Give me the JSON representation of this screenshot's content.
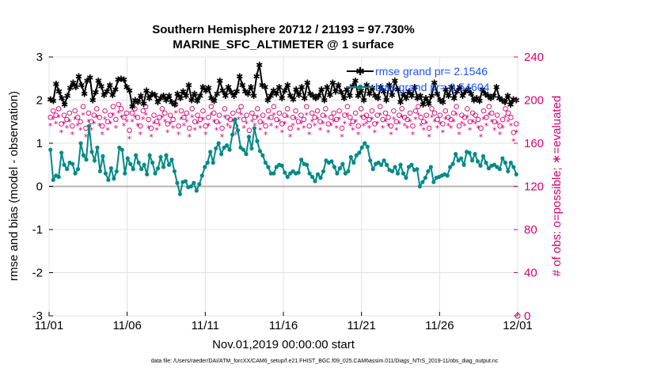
{
  "chart_data": {
    "type": "line",
    "title_line1": "Southern Hemisphere 20712 / 21193 = 97.730%",
    "title_line2": "MARINE_SFC_ALTIMETER @ 1 surface",
    "xlabel": "Nov.01,2019 00:00:00 start",
    "ylabel_left": "rmse and bias (model - observation)",
    "ylabel_right": "# of obs: o=possible; ∗=evaluated",
    "footnote": "data file: /Users/raeder/DAI/ATM_forcXX/CAM6_setup/f.e21.FHIST_BGC.f09_025.CAM6assim.011/Diags_NTrS_2019-11/obs_diag_output.nc",
    "xlim": [
      0,
      30
    ],
    "ylim_left": [
      -3,
      3
    ],
    "ylim_right": [
      0,
      240
    ],
    "x_tick_labels": [
      "11/01",
      "11/06",
      "11/11",
      "11/16",
      "11/21",
      "11/26",
      "12/01"
    ],
    "y_left_ticks": [
      "-3",
      "-2",
      "-1",
      "0",
      "1",
      "2",
      "3"
    ],
    "y_right_ticks": [
      "0",
      "40",
      "80",
      "120",
      "160",
      "200",
      "240"
    ],
    "legend": {
      "rmse_label": "rmse grand pr= 2.1546",
      "bias_label": "bias grand pr= 0.54604"
    },
    "series": [
      {
        "name": "rmse",
        "color": "#000000",
        "values": [
          2.02,
          1.98,
          2.38,
          2.2,
          2.05,
          1.9,
          2.1,
          2.28,
          2.4,
          2.3,
          2.55,
          2.35,
          2.15,
          2.45,
          2.52,
          2.0,
          2.18,
          2.45,
          2.32,
          2.12,
          2.2,
          2.35,
          2.12,
          2.25,
          2.48,
          2.5,
          2.48,
          2.3,
          2.22,
          1.85,
          2.0,
          1.95,
          2.1,
          1.92,
          2.22,
          2.05,
          2.15,
          2.12,
          1.95,
          2.05,
          2.1,
          2.0,
          2.1,
          1.95,
          1.9,
          2.15,
          2.05,
          2.2,
          2.1,
          2.35,
          2.0,
          2.15,
          1.98,
          2.1,
          2.3,
          2.22,
          2.28,
          2.05,
          1.98,
          2.15,
          2.45,
          2.22,
          2.1,
          2.3,
          2.18,
          2.1,
          2.2,
          2.55,
          2.35,
          2.2,
          2.15,
          2.3,
          2.1,
          2.55,
          2.82,
          2.35,
          2.3,
          2.0,
          2.1,
          2.22,
          2.15,
          2.3,
          2.05,
          2.22,
          2.35,
          2.1,
          2.02,
          2.25,
          2.12,
          2.3,
          2.05,
          2.4,
          2.15,
          2.1,
          2.05,
          2.1,
          2.25,
          2.0,
          2.3,
          2.12,
          2.4,
          2.2,
          2.35,
          2.18,
          2.05,
          2.25,
          2.1,
          2.32,
          2.45,
          2.1,
          2.22,
          2.0,
          2.35,
          2.15,
          2.28,
          2.1,
          2.05,
          2.3,
          2.2,
          2.0,
          2.35,
          2.12,
          2.45,
          2.25,
          1.95,
          2.15,
          2.05,
          2.2,
          2.1,
          2.3,
          2.05,
          2.1,
          1.9,
          2.05,
          1.92,
          2.1,
          2.4,
          2.15,
          2.0,
          1.95,
          2.25,
          2.1,
          2.3,
          2.05,
          2.2,
          2.3,
          2.1,
          2.2,
          2.25,
          2.15,
          2.0,
          2.05,
          1.98,
          2.25,
          2.15,
          2.1,
          2.05,
          2.1,
          2.3,
          2.05,
          2.0,
          1.95,
          2.1,
          1.9,
          2.02,
          2.0
        ]
      },
      {
        "name": "bias",
        "color": "#008a87",
        "values": [
          0.85,
          0.15,
          0.25,
          0.22,
          0.78,
          0.5,
          0.4,
          0.55,
          0.52,
          0.3,
          0.4,
          1.0,
          0.72,
          0.62,
          1.4,
          0.8,
          0.6,
          0.9,
          0.35,
          0.7,
          0.3,
          0.15,
          0.42,
          0.18,
          0.35,
          0.9,
          0.85,
          0.3,
          0.65,
          0.52,
          0.4,
          0.72,
          0.55,
          0.4,
          0.5,
          0.28,
          0.72,
          0.55,
          0.3,
          0.42,
          0.68,
          0.45,
          0.72,
          0.5,
          0.62,
          0.35,
          0.08,
          -0.18,
          0.1,
          0.12,
          -0.02,
          0.0,
          0.08,
          -0.1,
          0.05,
          0.25,
          0.45,
          0.55,
          0.8,
          0.55,
          0.88,
          1.0,
          0.75,
          0.9,
          0.95,
          0.85,
          1.2,
          1.55,
          1.3,
          0.9,
          0.85,
          0.75,
          1.15,
          0.88,
          1.35,
          1.05,
          0.82,
          0.72,
          0.55,
          0.45,
          0.3,
          0.3,
          0.45,
          0.5,
          0.48,
          0.32,
          0.22,
          0.3,
          0.35,
          0.3,
          0.32,
          0.62,
          0.52,
          0.5,
          0.3,
          0.22,
          0.12,
          0.28,
          0.2,
          0.35,
          0.6,
          0.55,
          0.58,
          0.45,
          0.3,
          0.42,
          0.52,
          0.3,
          0.35,
          0.68,
          0.55,
          0.72,
          0.78,
          0.9,
          1.0,
          0.92,
          0.6,
          0.4,
          0.52,
          0.55,
          0.5,
          0.6,
          0.5,
          0.38,
          0.35,
          0.45,
          0.3,
          0.5,
          0.3,
          0.2,
          0.45,
          0.5,
          0.38,
          0.4,
          0.0,
          0.1,
          0.2,
          0.35,
          0.45,
          0.1,
          0.2,
          0.22,
          0.25,
          0.28,
          0.25,
          0.45,
          0.52,
          0.75,
          0.6,
          0.65,
          0.5,
          0.8,
          0.78,
          0.6,
          0.75,
          0.58,
          0.48,
          0.7,
          0.55,
          0.42,
          0.48,
          0.5,
          0.45,
          0.4,
          0.65,
          0.55,
          0.35,
          0.55,
          0.45,
          0.28
        ]
      },
      {
        "name": "obs_possible",
        "color": "#d6006e",
        "marker": "circle",
        "values": [
          184,
          190,
          186,
          192,
          178,
          186,
          182,
          188,
          176,
          190,
          184,
          180,
          194,
          174,
          188,
          180,
          186,
          192,
          184,
          176,
          190,
          180,
          186,
          194,
          182,
          196,
          192,
          184,
          188,
          172,
          188,
          192,
          184,
          176,
          190,
          194,
          182,
          174,
          186,
          180,
          184,
          192,
          188,
          178,
          186,
          182,
          196,
          176,
          190,
          184,
          188,
          174,
          192,
          180,
          186,
          182,
          190,
          176,
          184,
          194,
          188,
          180,
          186,
          174,
          192,
          184,
          182,
          188,
          176,
          190,
          194,
          182,
          186,
          172,
          188,
          184,
          192,
          180,
          186,
          176,
          190,
          184,
          194,
          182,
          188,
          178,
          186,
          192,
          174,
          184,
          190,
          180,
          186,
          182,
          194,
          176,
          188,
          184,
          190,
          180,
          186,
          192,
          178,
          184,
          188,
          182,
          190,
          174,
          186,
          194,
          184,
          180,
          188,
          176,
          192,
          184,
          186,
          182,
          190,
          178,
          186,
          194,
          182,
          188,
          184,
          176,
          190,
          180,
          186,
          192,
          184,
          182,
          188,
          176,
          190,
          194,
          184,
          180,
          186,
          174,
          192,
          188,
          182,
          186,
          178,
          190,
          184,
          182,
          188,
          194,
          176,
          186,
          184,
          192,
          180,
          188,
          186,
          182,
          174,
          190,
          184,
          194,
          188,
          180,
          186,
          176,
          182,
          192,
          188,
          184,
          170,
          178
        ]
      },
      {
        "name": "obs_evaluated",
        "color": "#d6006e",
        "marker": "asterisk",
        "values": [
          176,
          182,
          178,
          184,
          170,
          178,
          174,
          180,
          168,
          182,
          176,
          172,
          186,
          166,
          180,
          172,
          178,
          184,
          176,
          168,
          182,
          172,
          178,
          186,
          174,
          188,
          184,
          176,
          180,
          164,
          180,
          184,
          176,
          168,
          182,
          186,
          174,
          166,
          178,
          172,
          176,
          184,
          180,
          170,
          178,
          174,
          188,
          168,
          182,
          176,
          180,
          166,
          184,
          172,
          178,
          174,
          182,
          168,
          176,
          186,
          180,
          172,
          178,
          166,
          184,
          176,
          174,
          180,
          168,
          182,
          186,
          174,
          178,
          164,
          180,
          176,
          184,
          172,
          178,
          168,
          182,
          176,
          186,
          174,
          180,
          170,
          178,
          184,
          166,
          176,
          182,
          172,
          178,
          174,
          186,
          168,
          180,
          176,
          182,
          172,
          178,
          184,
          170,
          176,
          180,
          174,
          182,
          166,
          178,
          186,
          176,
          172,
          180,
          168,
          184,
          176,
          178,
          174,
          182,
          170,
          178,
          186,
          174,
          180,
          176,
          168,
          182,
          172,
          178,
          184,
          176,
          174,
          180,
          168,
          182,
          186,
          176,
          172,
          178,
          166,
          184,
          180,
          174,
          178,
          170,
          182,
          176,
          174,
          180,
          186,
          168,
          178,
          176,
          184,
          172,
          180,
          178,
          174,
          166,
          182,
          176,
          186,
          180,
          172,
          178,
          168,
          174,
          184,
          180,
          176,
          162,
          170
        ]
      }
    ]
  }
}
